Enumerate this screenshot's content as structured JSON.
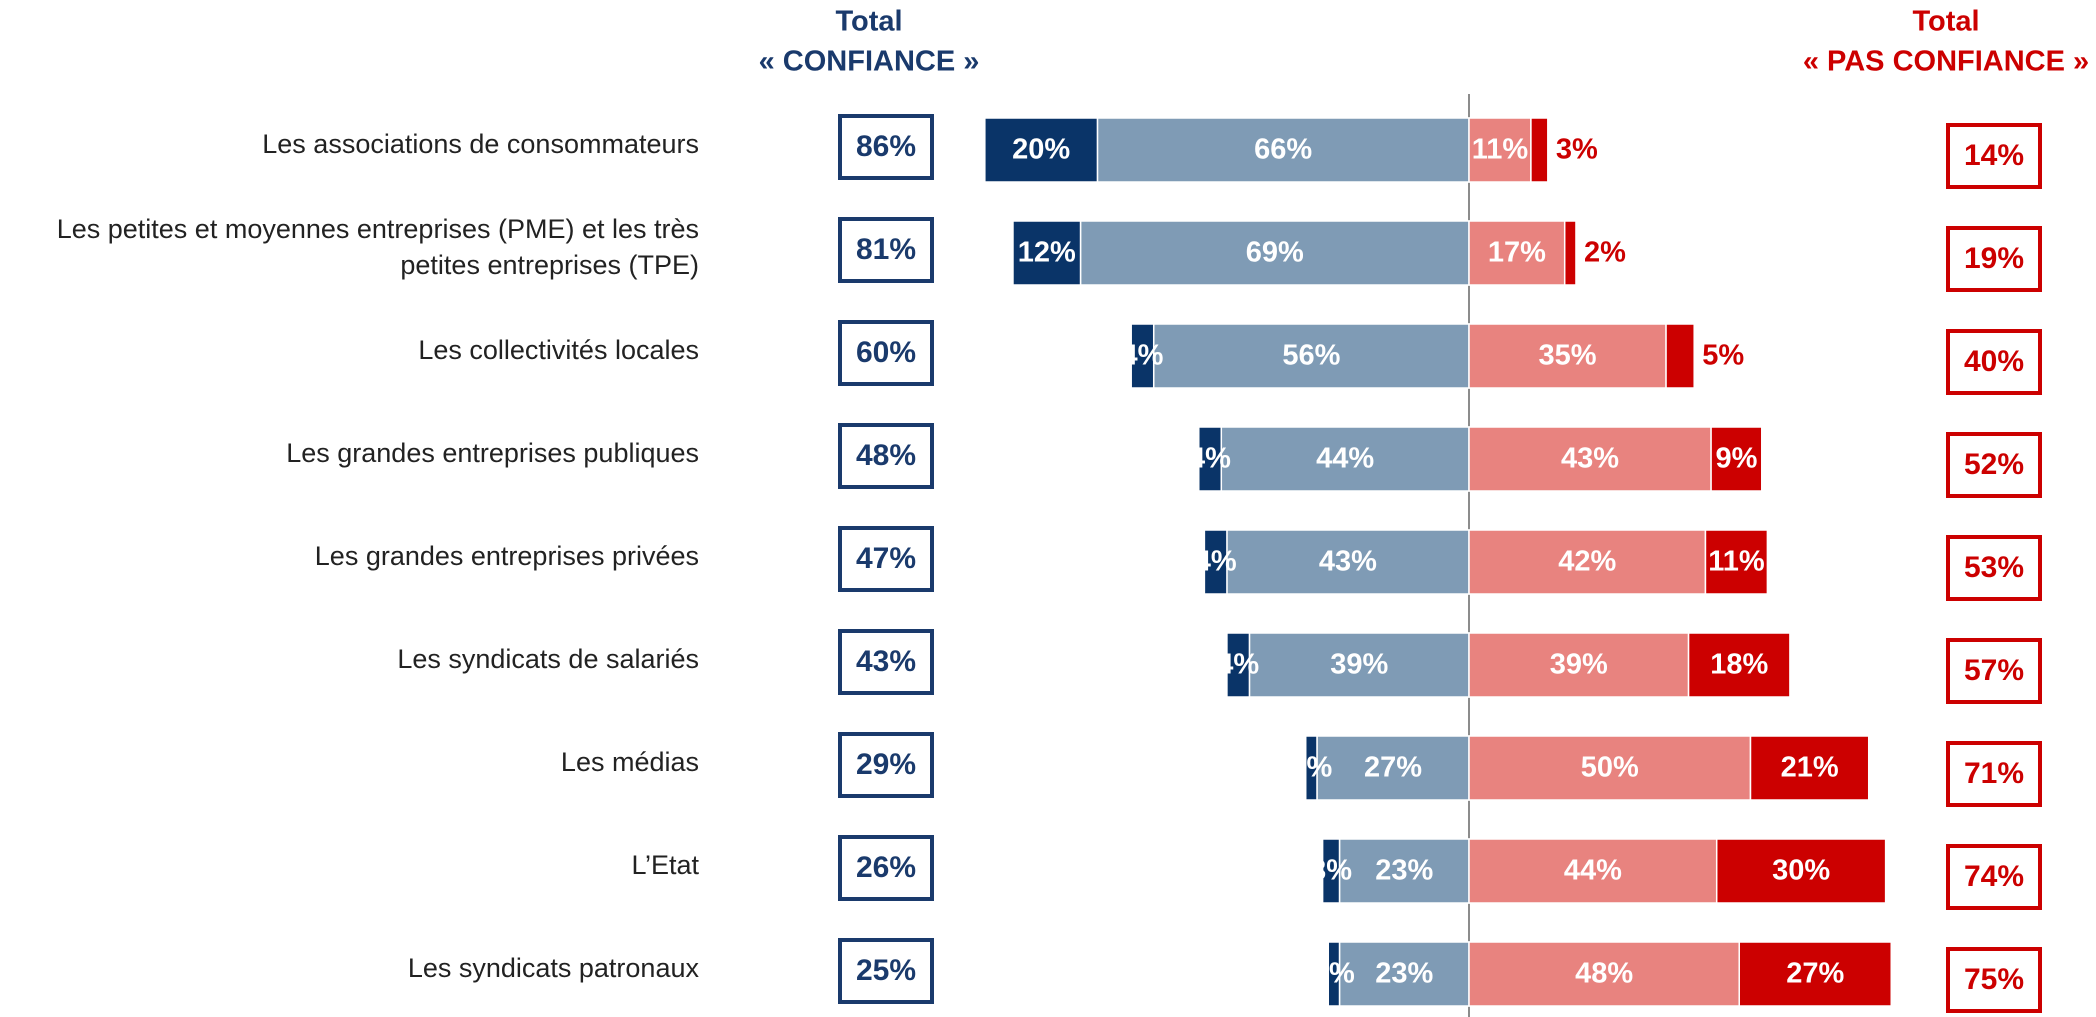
{
  "chart_data": {
    "type": "diverging-bar",
    "header_left": [
      "Total",
      "« CONFIANCE »"
    ],
    "header_right": [
      "Total",
      "« PAS CONFIANCE »"
    ],
    "categories": [
      "Les associations de consommateurs",
      "Les petites et moyennes entreprises (PME) et les très petites entreprises (TPE)",
      "Les collectivités locales",
      "Les grandes entreprises publiques",
      "Les grandes entreprises privées",
      "Les syndicats de salariés",
      "Les médias",
      "L’Etat",
      "Les syndicats patronaux"
    ],
    "series": [
      {
        "color": "#0a3468",
        "values": [
          20,
          12,
          4,
          4,
          4,
          4,
          2,
          3,
          2
        ],
        "value_labels": [
          "20%",
          "12%",
          "4%",
          "4%",
          "4%",
          "4%",
          "2%",
          "3%",
          "2%"
        ]
      },
      {
        "color": "#7f9bb5",
        "values": [
          66,
          69,
          56,
          44,
          43,
          39,
          27,
          23,
          23
        ],
        "value_labels": [
          "66%",
          "69%",
          "56%",
          "44%",
          "43%",
          "39%",
          "27%",
          "23%",
          "23%"
        ]
      },
      {
        "color": "#e8837f",
        "values": [
          11,
          17,
          35,
          43,
          42,
          39,
          50,
          44,
          48
        ],
        "value_labels": [
          "11%",
          "17%",
          "35%",
          "43%",
          "42%",
          "39%",
          "50%",
          "44%",
          "48%"
        ]
      },
      {
        "color": "#cc0000",
        "values": [
          3,
          2,
          5,
          9,
          11,
          18,
          21,
          30,
          27
        ],
        "value_labels": [
          "3%",
          "2%",
          "5%",
          "9%",
          "11%",
          "18%",
          "21%",
          "30%",
          "27%"
        ]
      }
    ],
    "total_confiance": {
      "color": "#1a3a6c",
      "values": [
        86,
        81,
        60,
        48,
        47,
        43,
        29,
        26,
        25
      ],
      "value_labels": [
        "86%",
        "81%",
        "60%",
        "48%",
        "47%",
        "43%",
        "29%",
        "26%",
        "25%"
      ]
    },
    "total_pas_confiance": {
      "color": "#cc0000",
      "values": [
        14,
        19,
        40,
        52,
        53,
        57,
        71,
        74,
        75
      ],
      "value_labels": [
        "14%",
        "19%",
        "40%",
        "52%",
        "53%",
        "57%",
        "71%",
        "74%",
        "75%"
      ]
    }
  }
}
